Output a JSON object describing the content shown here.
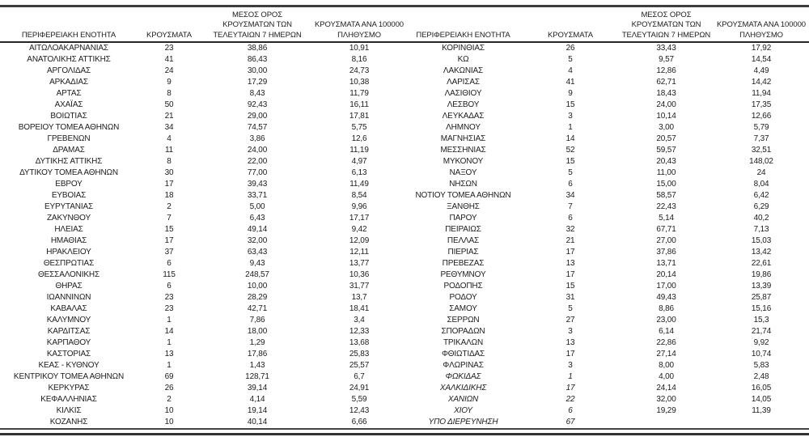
{
  "page": {
    "background": "#ffffff",
    "text_color": "#1c1c1c",
    "rule_color": "#3d3d3d"
  },
  "columns": [
    {
      "key": "region",
      "label": "ΠΕΡΙΦΕΡΕΙΑΚΗ ΕΝΟΤΗΤΑ"
    },
    {
      "key": "cases",
      "label": "ΚΡΟΥΣΜΑΤΑ"
    },
    {
      "key": "avg_7day",
      "label": "ΜΕΣΟΣ ΟΡΟΣ\nΚΡΟΥΣΜΑΤΩΝ ΤΩΝ\nΤΕΛΕΥΤΑΙΩΝ 7 ΗΜΕΡΩΝ"
    },
    {
      "key": "per_100k",
      "label": "ΚΡΟΥΣΜΑΤΑ ΑΝΑ 100000\nΠΛΗΘΥΣΜΟ"
    }
  ],
  "tables": [
    {
      "rows": [
        {
          "region": "ΑΙΤΩΛΟΑΚΑΡΝΑΝΙΑΣ",
          "cases": "23",
          "avg_7day": "38,86",
          "per_100k": "10,91"
        },
        {
          "region": "ΑΝΑΤΟΛΙΚΗΣ ΑΤΤΙΚΗΣ",
          "cases": "41",
          "avg_7day": "86,43",
          "per_100k": "8,16"
        },
        {
          "region": "ΑΡΓΟΛΙΔΑΣ",
          "cases": "24",
          "avg_7day": "30,00",
          "per_100k": "24,73"
        },
        {
          "region": "ΑΡΚΑΔΙΑΣ",
          "cases": "9",
          "avg_7day": "17,29",
          "per_100k": "10,38"
        },
        {
          "region": "ΑΡΤΑΣ",
          "cases": "8",
          "avg_7day": "8,43",
          "per_100k": "11,79"
        },
        {
          "region": "ΑΧΑΪΑΣ",
          "cases": "50",
          "avg_7day": "92,43",
          "per_100k": "16,11"
        },
        {
          "region": "ΒΟΙΩΤΙΑΣ",
          "cases": "21",
          "avg_7day": "29,00",
          "per_100k": "17,81"
        },
        {
          "region": "ΒΟΡΕΙΟΥ ΤΟΜΕΑ ΑΘΗΝΩΝ",
          "cases": "34",
          "avg_7day": "74,57",
          "per_100k": "5,75"
        },
        {
          "region": "ΓΡΕΒΕΝΩΝ",
          "cases": "4",
          "avg_7day": "3,86",
          "per_100k": "12,6"
        },
        {
          "region": "ΔΡΑΜΑΣ",
          "cases": "11",
          "avg_7day": "24,00",
          "per_100k": "11,19"
        },
        {
          "region": "ΔΥΤΙΚΗΣ ΑΤΤΙΚΗΣ",
          "cases": "8",
          "avg_7day": "22,00",
          "per_100k": "4,97"
        },
        {
          "region": "ΔΥΤΙΚΟΥ ΤΟΜΕΑ ΑΘΗΝΩΝ",
          "cases": "30",
          "avg_7day": "77,00",
          "per_100k": "6,13"
        },
        {
          "region": "ΕΒΡΟΥ",
          "cases": "17",
          "avg_7day": "39,43",
          "per_100k": "11,49"
        },
        {
          "region": "ΕΥΒΟΙΑΣ",
          "cases": "18",
          "avg_7day": "33,71",
          "per_100k": "8,54"
        },
        {
          "region": "ΕΥΡΥΤΑΝΙΑΣ",
          "cases": "2",
          "avg_7day": "5,00",
          "per_100k": "9,96"
        },
        {
          "region": "ΖΑΚΥΝΘΟΥ",
          "cases": "7",
          "avg_7day": "6,43",
          "per_100k": "17,17"
        },
        {
          "region": "ΗΛΕΙΑΣ",
          "cases": "15",
          "avg_7day": "49,14",
          "per_100k": "9,42"
        },
        {
          "region": "ΗΜΑΘΙΑΣ",
          "cases": "17",
          "avg_7day": "32,00",
          "per_100k": "12,09"
        },
        {
          "region": "ΗΡΑΚΛΕΙΟΥ",
          "cases": "37",
          "avg_7day": "63,43",
          "per_100k": "12,11"
        },
        {
          "region": "ΘΕΣΠΡΩΤΙΑΣ",
          "cases": "6",
          "avg_7day": "9,43",
          "per_100k": "13,77"
        },
        {
          "region": "ΘΕΣΣΑΛΟΝΙΚΗΣ",
          "cases": "115",
          "avg_7day": "248,57",
          "per_100k": "10,36"
        },
        {
          "region": "ΘΗΡΑΣ",
          "cases": "6",
          "avg_7day": "10,00",
          "per_100k": "31,77"
        },
        {
          "region": "ΙΩΑΝΝΙΝΩΝ",
          "cases": "23",
          "avg_7day": "28,29",
          "per_100k": "13,7"
        },
        {
          "region": "ΚΑΒΑΛΑΣ",
          "cases": "23",
          "avg_7day": "42,71",
          "per_100k": "18,41"
        },
        {
          "region": "ΚΑΛΥΜΝΟΥ",
          "cases": "1",
          "avg_7day": "7,86",
          "per_100k": "3,4"
        },
        {
          "region": "ΚΑΡΔΙΤΣΑΣ",
          "cases": "14",
          "avg_7day": "18,00",
          "per_100k": "12,33"
        },
        {
          "region": "ΚΑΡΠΑΘΟΥ",
          "cases": "1",
          "avg_7day": "1,29",
          "per_100k": "13,68"
        },
        {
          "region": "ΚΑΣΤΟΡΙΑΣ",
          "cases": "13",
          "avg_7day": "17,86",
          "per_100k": "25,83"
        },
        {
          "region": "ΚΕΑΣ - ΚΥΘΝΟΥ",
          "cases": "1",
          "avg_7day": "1,43",
          "per_100k": "25,57"
        },
        {
          "region": "ΚΕΝΤΡΙΚΟΥ ΤΟΜΕΑ ΑΘΗΝΩΝ",
          "cases": "69",
          "avg_7day": "128,71",
          "per_100k": "6,7"
        },
        {
          "region": "ΚΕΡΚΥΡΑΣ",
          "cases": "26",
          "avg_7day": "39,14",
          "per_100k": "24,91"
        },
        {
          "region": "ΚΕΦΑΛΛΗΝΙΑΣ",
          "cases": "2",
          "avg_7day": "4,14",
          "per_100k": "5,59"
        },
        {
          "region": "ΚΙΛΚΙΣ",
          "cases": "10",
          "avg_7day": "19,14",
          "per_100k": "12,43"
        },
        {
          "region": "ΚΟΖΑΝΗΣ",
          "cases": "10",
          "avg_7day": "40,14",
          "per_100k": "6,66"
        }
      ]
    },
    {
      "rows": [
        {
          "region": "ΚΟΡΙΝΘΙΑΣ",
          "cases": "26",
          "avg_7day": "33,43",
          "per_100k": "17,92"
        },
        {
          "region": "ΚΩ",
          "cases": "5",
          "avg_7day": "9,57",
          "per_100k": "14,54"
        },
        {
          "region": "ΛΑΚΩΝΙΑΣ",
          "cases": "4",
          "avg_7day": "12,86",
          "per_100k": "4,49"
        },
        {
          "region": "ΛΑΡΙΣΑΣ",
          "cases": "41",
          "avg_7day": "62,71",
          "per_100k": "14,42"
        },
        {
          "region": "ΛΑΣΙΘΙΟΥ",
          "cases": "9",
          "avg_7day": "18,43",
          "per_100k": "11,94"
        },
        {
          "region": "ΛΕΣΒΟΥ",
          "cases": "15",
          "avg_7day": "24,00",
          "per_100k": "17,35"
        },
        {
          "region": "ΛΕΥΚΑΔΑΣ",
          "cases": "3",
          "avg_7day": "10,14",
          "per_100k": "12,66"
        },
        {
          "region": "ΛΗΜΝΟΥ",
          "cases": "1",
          "avg_7day": "3,00",
          "per_100k": "5,79"
        },
        {
          "region": "ΜΑΓΝΗΣΙΑΣ",
          "cases": "14",
          "avg_7day": "20,57",
          "per_100k": "7,37"
        },
        {
          "region": "ΜΕΣΣΗΝΙΑΣ",
          "cases": "52",
          "avg_7day": "59,57",
          "per_100k": "32,51"
        },
        {
          "region": "ΜΥΚΟΝΟΥ",
          "cases": "15",
          "avg_7day": "20,43",
          "per_100k": "148,02"
        },
        {
          "region": "ΝΑΞΟΥ",
          "cases": "5",
          "avg_7day": "11,00",
          "per_100k": "24"
        },
        {
          "region": "ΝΗΣΩΝ",
          "cases": "6",
          "avg_7day": "15,00",
          "per_100k": "8,04"
        },
        {
          "region": "ΝΟΤΙΟΥ ΤΟΜΕΑ ΑΘΗΝΩΝ",
          "cases": "34",
          "avg_7day": "58,57",
          "per_100k": "6,42"
        },
        {
          "region": "ΞΑΝΘΗΣ",
          "cases": "7",
          "avg_7day": "22,43",
          "per_100k": "6,29"
        },
        {
          "region": "ΠΑΡΟΥ",
          "cases": "6",
          "avg_7day": "5,14",
          "per_100k": "40,2"
        },
        {
          "region": "ΠΕΙΡΑΙΩΣ",
          "cases": "32",
          "avg_7day": "67,71",
          "per_100k": "7,13"
        },
        {
          "region": "ΠΕΛΛΑΣ",
          "cases": "21",
          "avg_7day": "27,00",
          "per_100k": "15,03"
        },
        {
          "region": "ΠΙΕΡΙΑΣ",
          "cases": "17",
          "avg_7day": "37,86",
          "per_100k": "13,42"
        },
        {
          "region": "ΠΡΕΒΕΖΑΣ",
          "cases": "13",
          "avg_7day": "13,71",
          "per_100k": "22,61"
        },
        {
          "region": "ΡΕΘΥΜΝΟΥ",
          "cases": "17",
          "avg_7day": "20,14",
          "per_100k": "19,86"
        },
        {
          "region": "ΡΟΔΟΠΗΣ",
          "cases": "15",
          "avg_7day": "17,00",
          "per_100k": "13,39"
        },
        {
          "region": "ΡΟΔΟΥ",
          "cases": "31",
          "avg_7day": "49,43",
          "per_100k": "25,87"
        },
        {
          "region": "ΣΑΜΟΥ",
          "cases": "5",
          "avg_7day": "8,86",
          "per_100k": "15,16"
        },
        {
          "region": "ΣΕΡΡΩΝ",
          "cases": "27",
          "avg_7day": "23,00",
          "per_100k": "15,3"
        },
        {
          "region": "ΣΠΟΡΑΔΩΝ",
          "cases": "3",
          "avg_7day": "6,14",
          "per_100k": "21,74"
        },
        {
          "region": "ΤΡΙΚΑΛΩΝ",
          "cases": "13",
          "avg_7day": "22,86",
          "per_100k": "9,92"
        },
        {
          "region": "ΦΘΙΩΤΙΔΑΣ",
          "cases": "17",
          "avg_7day": "27,14",
          "per_100k": "10,74"
        },
        {
          "region": "ΦΛΩΡΙΝΑΣ",
          "cases": "3",
          "avg_7day": "8,00",
          "per_100k": "5,83"
        },
        {
          "region": "ΦΩΚΙΔΑΣ",
          "cases": "1",
          "avg_7day": "4,00",
          "per_100k": "2,48",
          "italic": true
        },
        {
          "region": "ΧΑΛΚΙΔΙΚΗΣ",
          "cases": "17",
          "avg_7day": "24,14",
          "per_100k": "16,05",
          "italic": true
        },
        {
          "region": "ΧΑΝΙΩΝ",
          "cases": "22",
          "avg_7day": "32,00",
          "per_100k": "14,05",
          "italic": true
        },
        {
          "region": "ΧΙΟΥ",
          "cases": "6",
          "avg_7day": "19,29",
          "per_100k": "11,39",
          "italic": true
        },
        {
          "region": "ΥΠΟ ΔΙΕΡΕΥΝΗΣΗ",
          "cases": "67",
          "avg_7day": "",
          "per_100k": "",
          "italic": true
        }
      ]
    }
  ]
}
